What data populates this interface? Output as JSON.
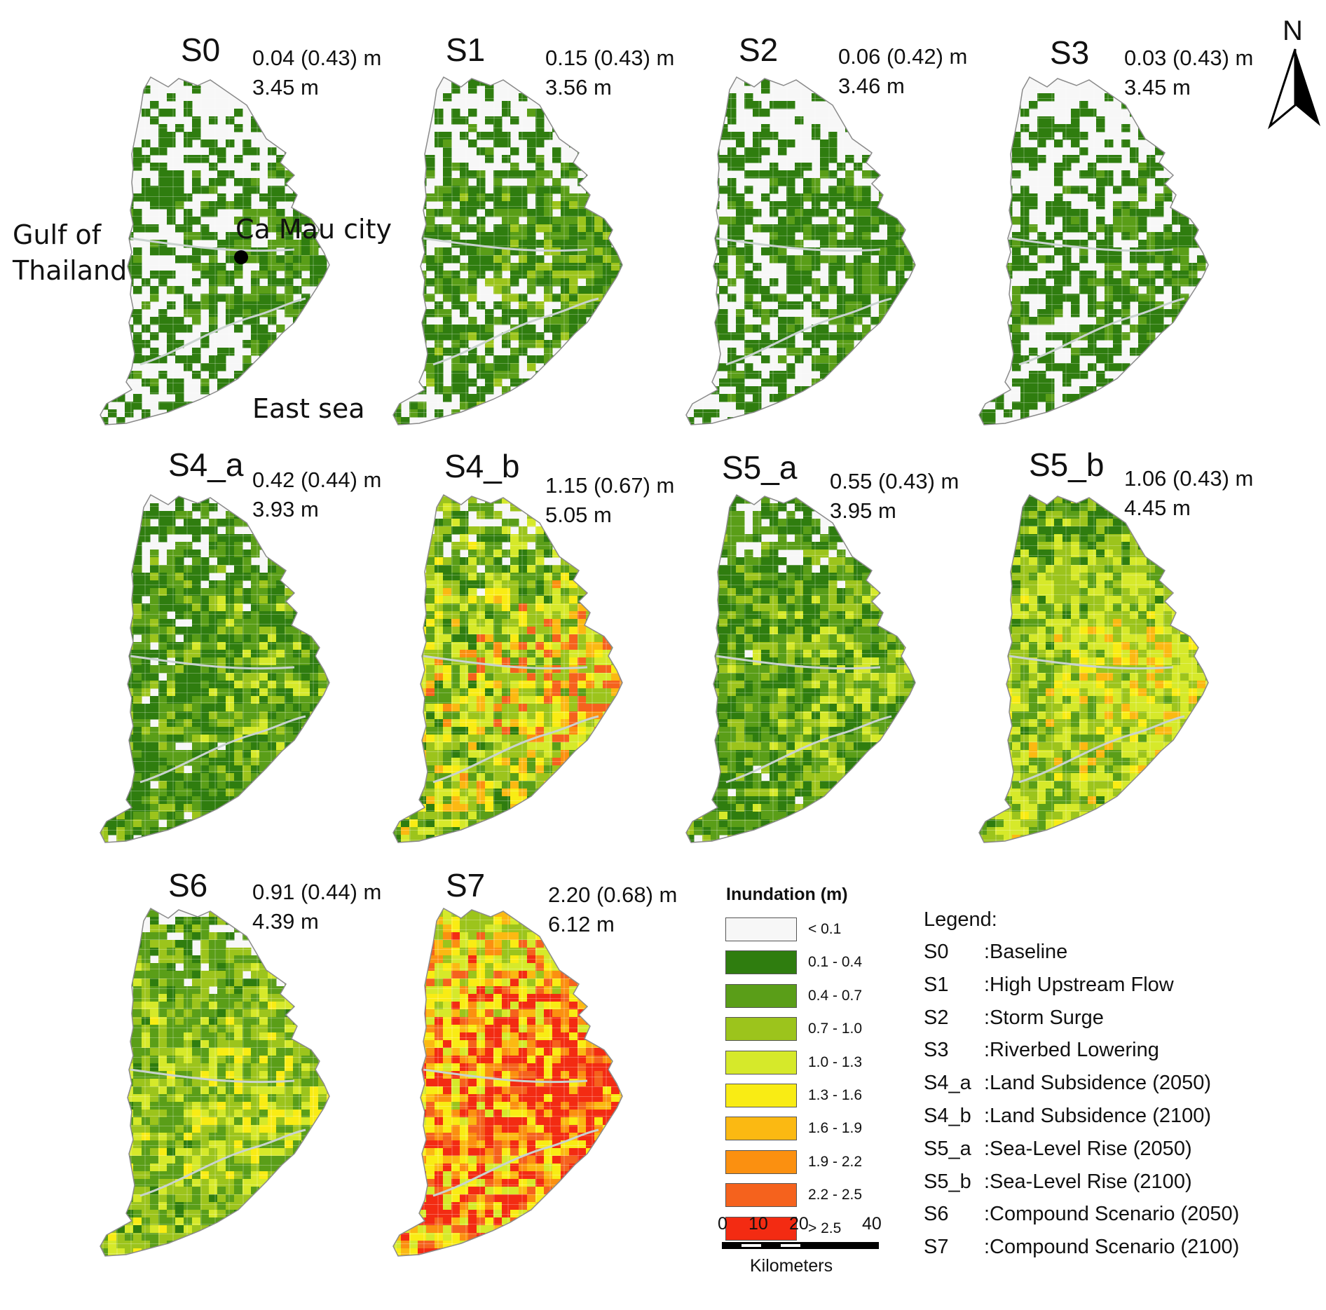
{
  "panels": [
    {
      "id": "S0",
      "mean": "0.04 (0.43) m",
      "max": "3.45 m",
      "dist": [
        0.5,
        0.38,
        0.12,
        0,
        0,
        0,
        0,
        0,
        0,
        0
      ]
    },
    {
      "id": "S1",
      "mean": "0.15 (0.43) m",
      "max": "3.56 m",
      "dist": [
        0.38,
        0.34,
        0.22,
        0.06,
        0,
        0,
        0,
        0,
        0,
        0
      ]
    },
    {
      "id": "S2",
      "mean": "0.06 (0.42) m",
      "max": "3.46 m",
      "dist": [
        0.45,
        0.4,
        0.15,
        0,
        0,
        0,
        0,
        0,
        0,
        0
      ]
    },
    {
      "id": "S3",
      "mean": "0.03 (0.43) m",
      "max": "3.45 m",
      "dist": [
        0.5,
        0.38,
        0.12,
        0,
        0,
        0,
        0,
        0,
        0,
        0
      ]
    },
    {
      "id": "S4_a",
      "mean": "0.42 (0.44) m",
      "max": "3.93 m",
      "dist": [
        0.15,
        0.35,
        0.3,
        0.15,
        0.05,
        0,
        0,
        0,
        0,
        0
      ]
    },
    {
      "id": "S4_b",
      "mean": "1.15 (0.67) m",
      "max": "5.05 m",
      "dist": [
        0.03,
        0.12,
        0.2,
        0.2,
        0.17,
        0.1,
        0.08,
        0.05,
        0.05,
        0
      ]
    },
    {
      "id": "S5_a",
      "mean": "0.55 (0.43) m",
      "max": "3.95 m",
      "dist": [
        0.05,
        0.35,
        0.3,
        0.2,
        0.1,
        0,
        0,
        0,
        0,
        0
      ]
    },
    {
      "id": "S5_b",
      "mean": "1.06 (0.43) m",
      "max": "4.45 m",
      "dist": [
        0,
        0.08,
        0.22,
        0.28,
        0.3,
        0.08,
        0.04,
        0,
        0,
        0
      ]
    },
    {
      "id": "S6",
      "mean": "0.91 (0.44) m",
      "max": "4.39 m",
      "dist": [
        0.02,
        0.12,
        0.35,
        0.28,
        0.18,
        0.05,
        0,
        0,
        0,
        0
      ]
    },
    {
      "id": "S7",
      "mean": "2.20 (0.68) m",
      "max": "6.12 m",
      "dist": [
        0,
        0,
        0,
        0.06,
        0.18,
        0.15,
        0.12,
        0.1,
        0.1,
        0.29
      ]
    }
  ],
  "annotations": {
    "gulf": "Gulf of\nThailand",
    "city": "Ca Mau city",
    "sea": "East sea"
  },
  "north": "N",
  "legend": {
    "title": "Inundation (m)",
    "classes": [
      {
        "label": "< 0.1",
        "color": "#f7f7f7"
      },
      {
        "label": "0.1 - 0.4",
        "color": "#2f7d0f"
      },
      {
        "label": "0.4 - 0.7",
        "color": "#5a9e18"
      },
      {
        "label": "0.7 - 1.0",
        "color": "#9cc41c"
      },
      {
        "label": "1.0 - 1.3",
        "color": "#d6e92a"
      },
      {
        "label": "1.3 - 1.6",
        "color": "#f9ec14"
      },
      {
        "label": "1.6 - 1.9",
        "color": "#fbb912"
      },
      {
        "label": "1.9 - 2.2",
        "color": "#fb9010"
      },
      {
        "label": "2.2 - 2.5",
        "color": "#f5621d"
      },
      {
        "label": "> 2.5",
        "color": "#f32b12"
      }
    ]
  },
  "scenarios": {
    "heading": "Legend:",
    "items": [
      {
        "code": "S0",
        "name": ":Baseline"
      },
      {
        "code": "S1",
        "name": ":High Upstream Flow"
      },
      {
        "code": "S2",
        "name": ":Storm Surge"
      },
      {
        "code": "S3",
        "name": ":Riverbed Lowering"
      },
      {
        "code": "S4_a",
        "name": ":Land Subsidence (2050)"
      },
      {
        "code": "S4_b",
        "name": ":Land Subsidence (2100)"
      },
      {
        "code": "S5_a",
        "name": ":Sea-Level Rise (2050)"
      },
      {
        "code": "S5_b",
        "name": ":Sea-Level Rise (2100)"
      },
      {
        "code": "S6",
        "name": ":Compound Scenario (2050)"
      },
      {
        "code": "S7",
        "name": ":Compound Scenario (2100)"
      }
    ]
  },
  "scalebar": {
    "ticks": [
      "0",
      "10",
      "20",
      "40"
    ],
    "unit": "Kilometers"
  }
}
